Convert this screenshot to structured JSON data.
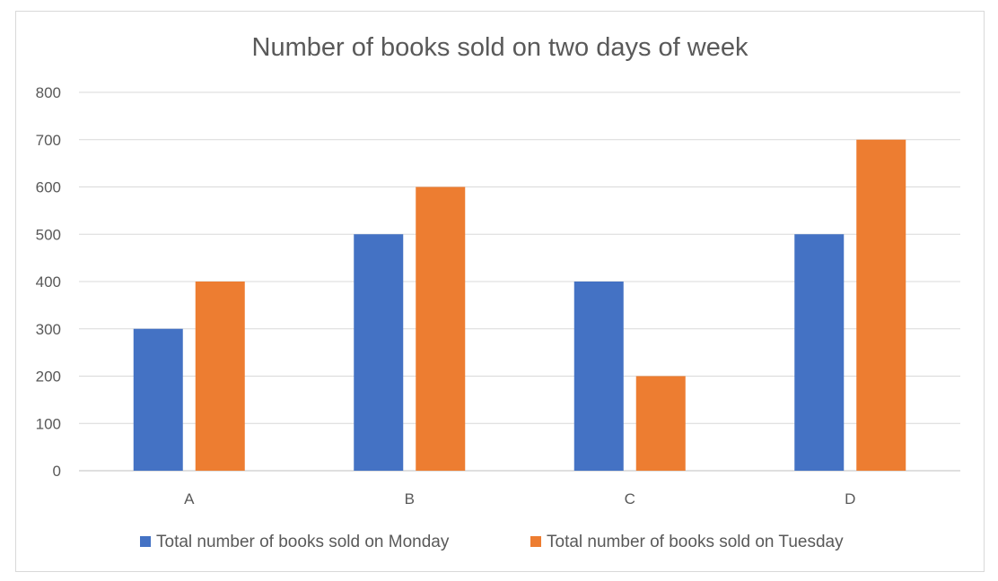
{
  "chart_data": {
    "type": "bar",
    "title": "Number of books sold on two days of week",
    "xlabel": "",
    "ylabel": "",
    "categories": [
      "A",
      "B",
      "C",
      "D"
    ],
    "series": [
      {
        "name": "Total number of books sold on Monday",
        "values": [
          300,
          500,
          400,
          500
        ],
        "color": "#4472c4"
      },
      {
        "name": "Total number of books sold on Tuesday",
        "values": [
          400,
          600,
          200,
          700
        ],
        "color": "#ed7d31"
      }
    ],
    "ylim": [
      0,
      800
    ],
    "yticks": [
      "0",
      "100",
      "200",
      "300",
      "400",
      "500",
      "600",
      "700",
      "800"
    ],
    "grid": true,
    "legend_position": "bottom"
  }
}
